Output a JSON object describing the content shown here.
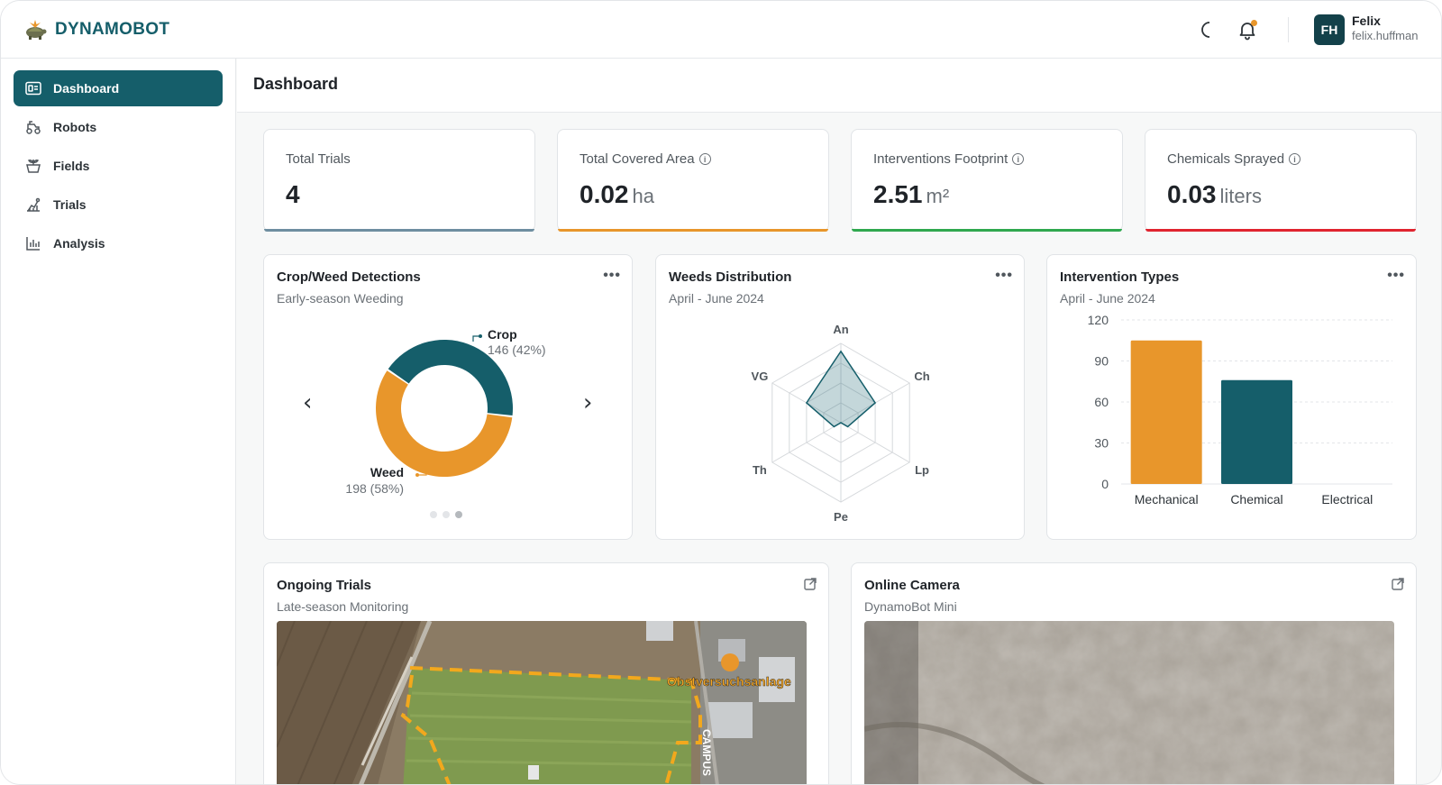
{
  "brand": {
    "name": "DYNAMOBOT"
  },
  "user": {
    "initials": "FH",
    "name": "Felix",
    "handle": "felix.huffman"
  },
  "topbar_icons": [
    "moon-icon",
    "bell-icon"
  ],
  "sidebar": {
    "items": [
      {
        "label": "Dashboard",
        "icon": "dashboard-icon",
        "active": true
      },
      {
        "label": "Robots",
        "icon": "robot-icon",
        "active": false
      },
      {
        "label": "Fields",
        "icon": "field-icon",
        "active": false
      },
      {
        "label": "Trials",
        "icon": "trial-icon",
        "active": false
      },
      {
        "label": "Analysis",
        "icon": "analysis-icon",
        "active": false
      }
    ]
  },
  "page": {
    "title": "Dashboard"
  },
  "stats": [
    {
      "label": "Total Trials",
      "value": "4",
      "unit": "",
      "info": false,
      "color": "#6e8ea0"
    },
    {
      "label": "Total Covered Area",
      "value": "0.02",
      "unit": "ha",
      "info": true,
      "color": "#e8962b"
    },
    {
      "label": "Interventions Footprint",
      "value": "2.51",
      "unit": "m²",
      "info": true,
      "color": "#2fa84f"
    },
    {
      "label": "Chemicals Sprayed",
      "value": "0.03",
      "unit": "liters",
      "info": true,
      "color": "#e0242f"
    }
  ],
  "cards": {
    "detections": {
      "title": "Crop/Weed Detections",
      "subtitle": "Early-season Weeding"
    },
    "weeds": {
      "title": "Weeds Distribution",
      "subtitle": "April - June 2024"
    },
    "interventions": {
      "title": "Intervention Types",
      "subtitle": "April - June 2024"
    },
    "trials": {
      "title": "Ongoing Trials",
      "subtitle": "Late-season Monitoring",
      "map_label": "Obstversuchsanlage",
      "road_label": "CAMPUS"
    },
    "camera": {
      "title": "Online Camera",
      "subtitle": "DynamoBot Mini"
    }
  },
  "chart_data": [
    {
      "type": "pie",
      "title": "Crop/Weed Detections",
      "slices": [
        {
          "label": "Crop",
          "value": 146,
          "percent_label": "146 (42%)",
          "color": "#155e6a"
        },
        {
          "label": "Weed",
          "value": 198,
          "percent_label": "198 (58%)",
          "color": "#e8962b"
        }
      ],
      "carousel": {
        "pages": 3,
        "active": 3
      }
    },
    {
      "type": "radar",
      "title": "Weeds Distribution",
      "axes": [
        "An",
        "Ch",
        "Lp",
        "Pe",
        "Th",
        "VG"
      ],
      "values": [
        0.9,
        0.5,
        0.1,
        0.0,
        0.1,
        0.5
      ],
      "color": "#155e6a"
    },
    {
      "type": "bar",
      "title": "Intervention Types",
      "categories": [
        "Mechanical",
        "Chemical",
        "Electrical"
      ],
      "values": [
        105,
        76,
        0
      ],
      "colors": [
        "#e8962b",
        "#155e6a",
        "#155e6a"
      ],
      "yticks": [
        0,
        30,
        60,
        90,
        120
      ],
      "ylim": [
        0,
        120
      ],
      "grid": true
    }
  ]
}
